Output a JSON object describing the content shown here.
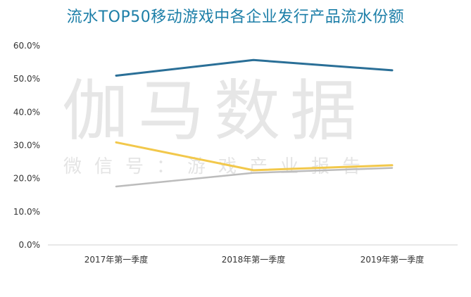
{
  "chart_data": {
    "type": "line",
    "title": "流水TOP50移动游戏中各企业发行产品流水份额",
    "xlabel": "",
    "ylabel": "",
    "categories": [
      "2017年第一季度",
      "2018年第一季度",
      "2019年第一季度"
    ],
    "y_ticks": [
      "0.0%",
      "10.0%",
      "20.0%",
      "30.0%",
      "40.0%",
      "50.0%",
      "60.0%"
    ],
    "ylim": [
      0,
      60
    ],
    "grid": false,
    "legend": "none",
    "series": [
      {
        "color": "#2a6f97",
        "values": [
          51.0,
          55.7,
          52.6
        ]
      },
      {
        "color": "#f2c84b",
        "values": [
          30.9,
          22.5,
          24.0
        ]
      },
      {
        "color": "#bcbcbc",
        "values": [
          17.6,
          21.7,
          23.2
        ]
      }
    ]
  },
  "watermark": {
    "main": "伽马数据",
    "sub": "微信号：游戏产业报告"
  }
}
